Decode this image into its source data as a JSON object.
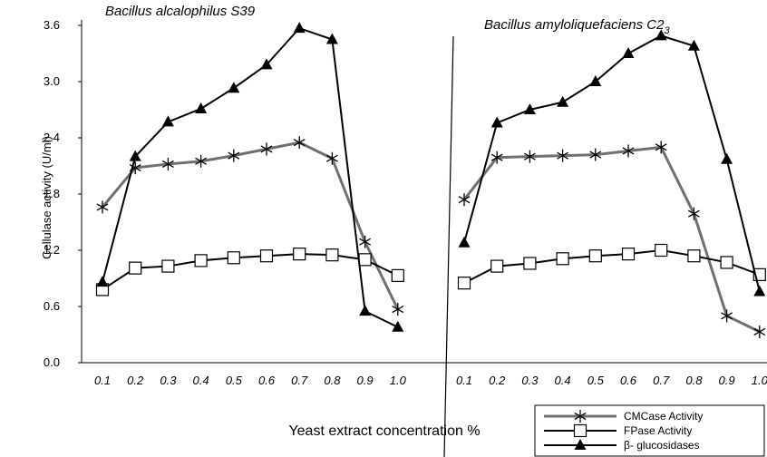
{
  "chart_data": {
    "type": "line",
    "ylabel": "Cellulase activity (U/ml)",
    "xlabel": "Yeast extract concentration %",
    "ylim": [
      0.0,
      3.6
    ],
    "yticks": [
      "0.0",
      "0.6",
      "1.2",
      "1.8",
      "2.4",
      "3.0",
      "3.6"
    ],
    "xtick_labels": [
      "0.1",
      "0.2",
      "0.3",
      "0.4",
      "0.5",
      "0.6",
      "0.7",
      "0.8",
      "0.9",
      "1.0"
    ],
    "gridlines": false,
    "legend": {
      "placement": "bottom-right",
      "entries": [
        "CMCase  Activity",
        "FPase  Activity",
        "β- glucosidases"
      ]
    },
    "panels": [
      {
        "title": "Bacillus alcalophilus S39",
        "x": [
          0.1,
          0.2,
          0.3,
          0.4,
          0.5,
          0.6,
          0.7,
          0.8,
          0.9,
          1.0
        ],
        "series": [
          {
            "name": "CMCase  Activity",
            "marker": "star",
            "color": "#707070",
            "values": [
              1.66,
              2.08,
              2.12,
              2.15,
              2.21,
              2.28,
              2.35,
              2.18,
              1.29,
              0.57
            ]
          },
          {
            "name": "FPase  Activity",
            "marker": "square",
            "color": "#000000",
            "values": [
              0.78,
              1.01,
              1.03,
              1.09,
              1.12,
              1.14,
              1.16,
              1.15,
              1.1,
              0.93
            ]
          },
          {
            "name": "β- glucosidases",
            "marker": "triangle",
            "color": "#000000",
            "values": [
              0.86,
              2.2,
              2.57,
              2.71,
              2.93,
              3.18,
              3.57,
              3.45,
              0.55,
              0.38
            ]
          }
        ]
      },
      {
        "title_main": "Bacillus amyloliquefaciens C2",
        "title_sub": "3",
        "x": [
          0.1,
          0.2,
          0.3,
          0.4,
          0.5,
          0.6,
          0.7,
          0.8,
          0.9,
          1.0
        ],
        "series": [
          {
            "name": "CMCase  Activity",
            "marker": "star",
            "color": "#707070",
            "values": [
              1.74,
              2.19,
              2.2,
              2.21,
              2.22,
              2.26,
              2.3,
              1.59,
              0.5,
              0.33
            ]
          },
          {
            "name": "FPase  Activity",
            "marker": "square",
            "color": "#000000",
            "values": [
              0.85,
              1.03,
              1.06,
              1.11,
              1.14,
              1.16,
              1.2,
              1.14,
              1.07,
              0.94
            ]
          },
          {
            "name": "β- glucosidases",
            "marker": "triangle",
            "color": "#000000",
            "values": [
              1.28,
              2.56,
              2.7,
              2.78,
              3.0,
              3.3,
              3.49,
              3.38,
              2.17,
              0.76
            ]
          }
        ]
      }
    ]
  }
}
